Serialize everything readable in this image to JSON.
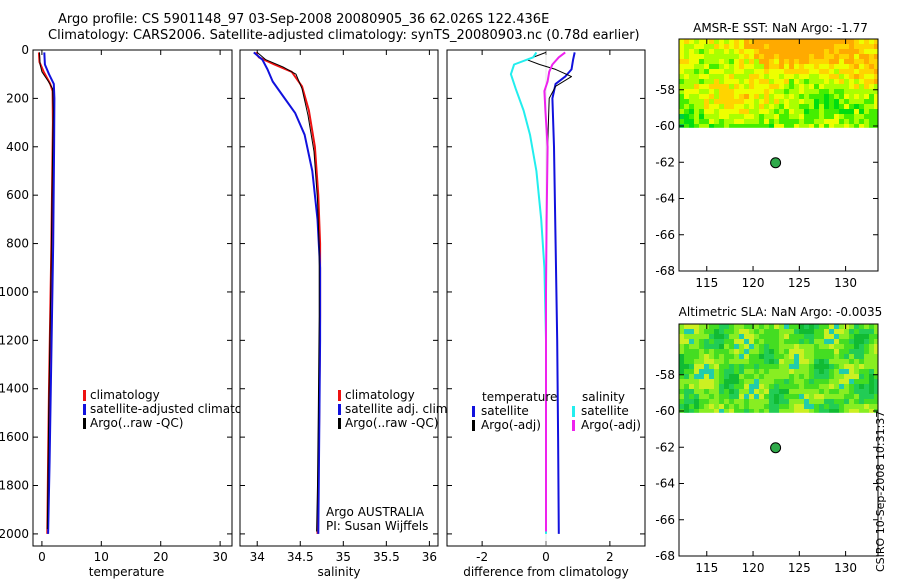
{
  "figure": {
    "title_line1": "Argo profile: CS 5901148_97 03-Sep-2008 20080905_36 62.026S 122.436E",
    "title_line2": "Climatology: CARS2006. Satellite-adjusted climatology: synTS_20080903.nc (0.78d earlier)",
    "stamp": "CSIRO 10-Sep-2008 10:31:37",
    "colors": {
      "red": "#ee1111",
      "blue": "#1111dd",
      "black": "#000000",
      "cyan": "#22eeee",
      "magenta": "#ee22ee",
      "marker": "#2faa4a"
    }
  },
  "chart_data": [
    {
      "id": "temperature",
      "type": "line",
      "xlabel": "temperature",
      "xlim": [
        -1.5,
        32
      ],
      "ylim": [
        2050,
        0
      ],
      "xticks": [
        0,
        10,
        20,
        30
      ],
      "xtick_labels": [
        "0",
        "10",
        "20",
        "30"
      ],
      "yticks": [
        0,
        200,
        400,
        600,
        800,
        1000,
        1200,
        1400,
        1600,
        1800,
        2000
      ],
      "ytick_labels": [
        "0",
        "200",
        "400",
        "600",
        "800",
        "1000",
        "1200",
        "1400",
        "1600",
        "1800",
        "2000"
      ],
      "legend": [
        "climatology",
        "satellite-adjusted climatology",
        "Argo(..raw -QC)"
      ],
      "legend_colors": [
        "#ee1111",
        "#1111dd",
        "#000000"
      ],
      "series": [
        {
          "name": "climatology",
          "color": "#ee1111",
          "width": 2,
          "points": [
            [
              -0.5,
              10
            ],
            [
              -0.4,
              50
            ],
            [
              0.3,
              90
            ],
            [
              1.4,
              140
            ],
            [
              1.8,
              170
            ],
            [
              1.85,
              300
            ],
            [
              1.75,
              500
            ],
            [
              1.6,
              800
            ],
            [
              1.4,
              1100
            ],
            [
              1.2,
              1400
            ],
            [
              1.05,
              1700
            ],
            [
              0.9,
              2000
            ]
          ]
        },
        {
          "name": "satellite-adjusted climatology",
          "color": "#1111dd",
          "width": 2,
          "points": [
            [
              0.4,
              10
            ],
            [
              0.5,
              60
            ],
            [
              1.2,
              100
            ],
            [
              2.0,
              140
            ],
            [
              2.1,
              200
            ],
            [
              2.05,
              400
            ],
            [
              1.9,
              800
            ],
            [
              1.7,
              1100
            ],
            [
              1.5,
              1400
            ],
            [
              1.3,
              1700
            ],
            [
              1.05,
              2000
            ]
          ]
        },
        {
          "name": "Argo(..raw -QC)",
          "color": "#000000",
          "width": 1,
          "points": [
            [
              -0.4,
              10
            ],
            [
              -0.3,
              60
            ],
            [
              0.0,
              90
            ],
            [
              1.1,
              130
            ],
            [
              1.8,
              160
            ],
            [
              1.9,
              250
            ],
            [
              1.7,
              600
            ],
            [
              1.55,
              900
            ],
            [
              1.35,
              1200
            ],
            [
              1.15,
              1500
            ],
            [
              1.0,
              1800
            ],
            [
              0.9,
              1980
            ]
          ]
        }
      ]
    },
    {
      "id": "salinity",
      "type": "line",
      "xlabel": "salinity",
      "xlim": [
        33.8,
        36.1
      ],
      "ylim": [
        2050,
        0
      ],
      "xticks": [
        34,
        34.5,
        35,
        35.5,
        36
      ],
      "xtick_labels": [
        "34",
        "34.5",
        "35",
        "35.5",
        "36"
      ],
      "legend": [
        "climatology",
        "satellite adj. clim.",
        "Argo(..raw -QC)"
      ],
      "legend_colors": [
        "#ee1111",
        "#1111dd",
        "#000000"
      ],
      "annotation": [
        "Argo AUSTRALIA",
        "PI: Susan Wijffels"
      ],
      "series": [
        {
          "name": "climatology",
          "color": "#ee1111",
          "width": 2,
          "points": [
            [
              33.98,
              10
            ],
            [
              34.02,
              30
            ],
            [
              34.2,
              60
            ],
            [
              34.4,
              90
            ],
            [
              34.52,
              150
            ],
            [
              34.6,
              250
            ],
            [
              34.67,
              400
            ],
            [
              34.71,
              600
            ],
            [
              34.73,
              800
            ],
            [
              34.73,
              1100
            ],
            [
              34.72,
              1500
            ],
            [
              34.71,
              1800
            ],
            [
              34.7,
              2000
            ]
          ]
        },
        {
          "name": "satellite adj. clim.",
          "color": "#1111dd",
          "width": 2,
          "points": [
            [
              33.96,
              10
            ],
            [
              34.06,
              40
            ],
            [
              34.12,
              80
            ],
            [
              34.18,
              130
            ],
            [
              34.3,
              190
            ],
            [
              34.44,
              260
            ],
            [
              34.55,
              350
            ],
            [
              34.64,
              500
            ],
            [
              34.7,
              700
            ],
            [
              34.73,
              900
            ],
            [
              34.73,
              1200
            ],
            [
              34.72,
              1600
            ],
            [
              34.71,
              2000
            ]
          ]
        },
        {
          "name": "Argo(..raw -QC)",
          "color": "#000000",
          "width": 1,
          "points": [
            [
              34.0,
              10
            ],
            [
              34.1,
              40
            ],
            [
              34.3,
              70
            ],
            [
              34.45,
              100
            ],
            [
              34.52,
              160
            ],
            [
              34.59,
              270
            ],
            [
              34.66,
              420
            ],
            [
              34.7,
              620
            ],
            [
              34.72,
              820
            ],
            [
              34.72,
              1100
            ],
            [
              34.71,
              1500
            ],
            [
              34.7,
              1800
            ],
            [
              34.69,
              1990
            ]
          ]
        }
      ]
    },
    {
      "id": "difference",
      "type": "line",
      "xlabel": "difference from climatology",
      "xlim": [
        -3.1,
        3.1
      ],
      "ylim": [
        2050,
        0
      ],
      "xticks": [
        -2,
        0,
        2
      ],
      "xtick_labels": [
        "-2",
        "0",
        "2"
      ],
      "legend": [
        "temperature",
        "satellite",
        "Argo(-adj)",
        "salinity",
        "satellite",
        "Argo(-adj)"
      ],
      "legend_colors": [
        "none",
        "#1111dd",
        "#000000",
        "none",
        "#22eeee",
        "#ee22ee"
      ],
      "series": [
        {
          "name": "temperature satellite",
          "color": "#1111dd",
          "width": 2,
          "points": [
            [
              0.9,
              10
            ],
            [
              0.85,
              40
            ],
            [
              0.8,
              80
            ],
            [
              0.6,
              110
            ],
            [
              0.3,
              140
            ],
            [
              0.2,
              200
            ],
            [
              0.25,
              400
            ],
            [
              0.3,
              800
            ],
            [
              0.35,
              1200
            ],
            [
              0.38,
              1600
            ],
            [
              0.4,
              2000
            ]
          ]
        },
        {
          "name": "temperature Argo(-adj)",
          "color": "#000000",
          "width": 1,
          "points": [
            [
              0.0,
              10
            ],
            [
              -0.6,
              40
            ],
            [
              -0.2,
              60
            ],
            [
              0.3,
              80
            ],
            [
              0.8,
              110
            ],
            [
              0.3,
              150
            ],
            [
              0.1,
              200
            ],
            [
              0.05,
              400
            ],
            [
              0.0,
              800
            ],
            [
              0.0,
              1200
            ],
            [
              0.0,
              1600
            ],
            [
              0.0,
              1980
            ]
          ]
        },
        {
          "name": "salinity satellite",
          "color": "#22eeee",
          "width": 2,
          "points": [
            [
              -0.3,
              10
            ],
            [
              -0.4,
              30
            ],
            [
              -1.0,
              60
            ],
            [
              -1.1,
              100
            ],
            [
              -0.95,
              160
            ],
            [
              -0.7,
              250
            ],
            [
              -0.5,
              350
            ],
            [
              -0.3,
              500
            ],
            [
              -0.15,
              700
            ],
            [
              -0.05,
              900
            ],
            [
              0.0,
              1200
            ],
            [
              0.0,
              1600
            ],
            [
              0.0,
              2000
            ]
          ]
        },
        {
          "name": "salinity Argo(-adj)",
          "color": "#ee22ee",
          "width": 2,
          "points": [
            [
              0.6,
              10
            ],
            [
              0.4,
              30
            ],
            [
              0.2,
              60
            ],
            [
              0.1,
              90
            ],
            [
              0.05,
              130
            ],
            [
              -0.05,
              170
            ],
            [
              -0.02,
              250
            ],
            [
              0.05,
              400
            ],
            [
              0.02,
              700
            ],
            [
              0.0,
              1000
            ],
            [
              0.0,
              1400
            ],
            [
              0.0,
              1800
            ],
            [
              0.0,
              1990
            ]
          ]
        }
      ]
    },
    {
      "id": "sst-map",
      "type": "heatmap",
      "title": "AMSR-E SST: NaN Argo: -1.77",
      "xlim": [
        112,
        133.5
      ],
      "ylim": [
        -68,
        -55.2
      ],
      "xticks": [
        115,
        120,
        125,
        130
      ],
      "xtick_labels": [
        "115",
        "120",
        "125",
        "130"
      ],
      "yticks": [
        -58,
        -60,
        -62,
        -64,
        -66,
        -68
      ],
      "ytick_labels": [
        "-58",
        "-60",
        "-62",
        "-64",
        "-66",
        "-68"
      ],
      "data_lat_min": -60.1,
      "palette": [
        "#ffaa00",
        "#ffd400",
        "#eeff00",
        "#aaff00",
        "#44ee00",
        "#00dd11",
        "#00cc44"
      ],
      "marker": {
        "lon": 122.436,
        "lat": -62.026
      }
    },
    {
      "id": "sla-map",
      "type": "heatmap",
      "title": "Altimetric SLA: NaN Argo: -0.0035",
      "xlim": [
        112,
        133.5
      ],
      "ylim": [
        -68,
        -55.2
      ],
      "xticks": [
        115,
        120,
        125,
        130
      ],
      "xtick_labels": [
        "115",
        "120",
        "125",
        "130"
      ],
      "yticks": [
        -58,
        -60,
        -62,
        -64,
        -66,
        -68
      ],
      "ytick_labels": [
        "-58",
        "-60",
        "-62",
        "-64",
        "-66",
        "-68"
      ],
      "data_lat_min": -60.1,
      "palette": [
        "#11bb33",
        "#22cc55",
        "#44dd22",
        "#88ee22",
        "#ccf022",
        "#22ccaa"
      ],
      "marker": {
        "lon": 122.436,
        "lat": -62.026
      }
    }
  ]
}
